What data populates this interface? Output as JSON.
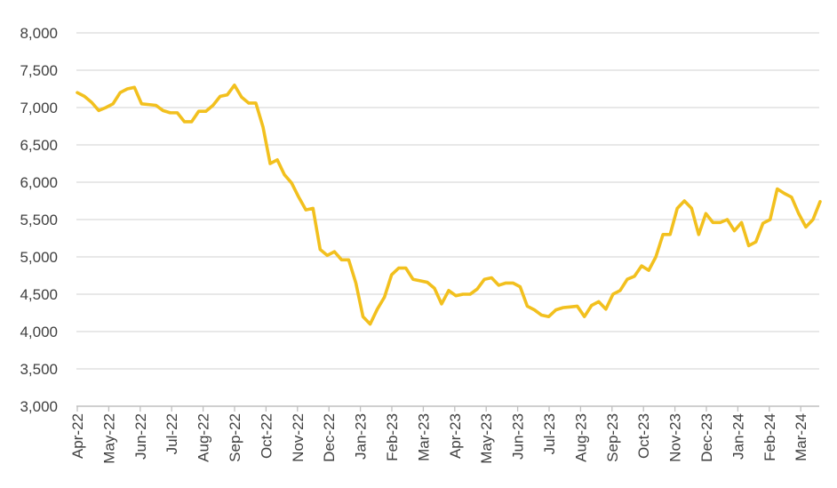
{
  "chart_data": {
    "type": "line",
    "title": "",
    "xlabel": "",
    "ylabel": "",
    "ylim": [
      3000,
      8000
    ],
    "yticks": [
      "3,000",
      "3,500",
      "4,000",
      "4,500",
      "5,000",
      "5,500",
      "6,000",
      "6,500",
      "7,000",
      "7,500",
      "8,000"
    ],
    "ytick_values": [
      3000,
      3500,
      4000,
      4500,
      5000,
      5500,
      6000,
      6500,
      7000,
      7500,
      8000
    ],
    "xticks": [
      "Apr-22",
      "May-22",
      "Jun-22",
      "Jul-22",
      "Aug-22",
      "Sep-22",
      "Oct-22",
      "Nov-22",
      "Dec-22",
      "Jan-23",
      "Feb-23",
      "Mar-23",
      "Apr-23",
      "May-23",
      "Jun-23",
      "Jul-23",
      "Aug-23",
      "Sep-23",
      "Oct-23",
      "Nov-23",
      "Dec-23",
      "Jan-24",
      "Feb-24",
      "Mar-24"
    ],
    "grid": true,
    "line_color": "#f2c01e",
    "grid_color": "#d9d9d9",
    "series": [
      {
        "values": [
          7200,
          7150,
          7070,
          6960,
          7000,
          7050,
          7200,
          7250,
          7270,
          7050,
          7040,
          7030,
          6960,
          6930,
          6930,
          6810,
          6810,
          6950,
          6950,
          7030,
          7150,
          7170,
          7300,
          7140,
          7060,
          7060,
          6740,
          6250,
          6300,
          6100,
          5990,
          5800,
          5630,
          5650,
          5100,
          5020,
          5070,
          4960,
          4960,
          4650,
          4200,
          4100,
          4300,
          4460,
          4760,
          4850,
          4850,
          4700,
          4680,
          4660,
          4580,
          4370,
          4550,
          4480,
          4500,
          4500,
          4570,
          4700,
          4720,
          4620,
          4650,
          4650,
          4600,
          4340,
          4290,
          4220,
          4200,
          4290,
          4320,
          4330,
          4340,
          4200,
          4350,
          4400,
          4300,
          4500,
          4550,
          4700,
          4740,
          4880,
          4820,
          5000,
          5300,
          5300,
          5650,
          5750,
          5650,
          5300,
          5580,
          5460,
          5460,
          5500,
          5350,
          5460,
          5150,
          5200,
          5450,
          5500,
          5910,
          5850,
          5800,
          5580,
          5400,
          5500,
          5740
        ]
      }
    ]
  }
}
